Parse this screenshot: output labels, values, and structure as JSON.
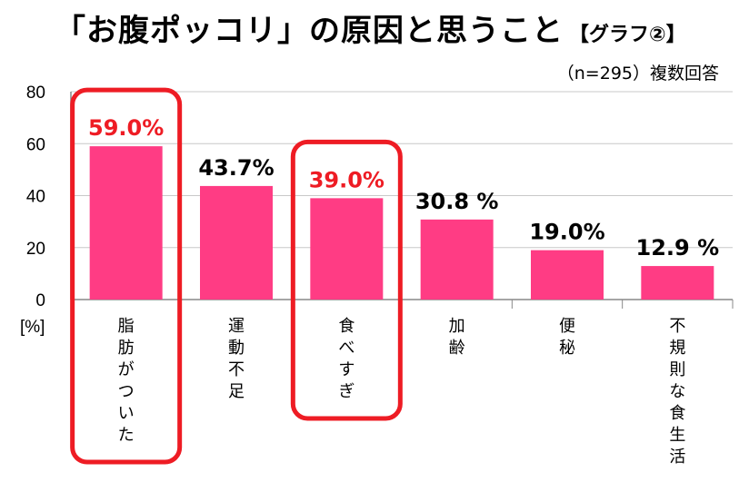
{
  "title": "「お腹ポッコリ」の原因と思うこと",
  "subtitle": "【グラフ②】",
  "note": "（n=295）複数回答",
  "colors": {
    "bar": "#ff3c84",
    "highlight": "#ee1c24",
    "axis": "#888888",
    "grid": "#c8c8c8"
  },
  "chart_data": {
    "type": "bar",
    "categories": [
      "脂肪がついた",
      "運動不足",
      "食べすぎ",
      "加齢",
      "便秘",
      "不規則な食生活"
    ],
    "values": [
      59.0,
      43.7,
      39.0,
      30.8,
      19.0,
      12.9
    ],
    "data_labels": [
      "59.0%",
      "43.7%",
      "39.0%",
      "30.8 %",
      "19.0%",
      "12.9 %"
    ],
    "highlighted": [
      true,
      false,
      true,
      false,
      false,
      false
    ],
    "ylabel": "[%]",
    "ylim": [
      0,
      80
    ],
    "yticks": [
      0,
      20,
      40,
      60,
      80
    ],
    "grid": true
  }
}
